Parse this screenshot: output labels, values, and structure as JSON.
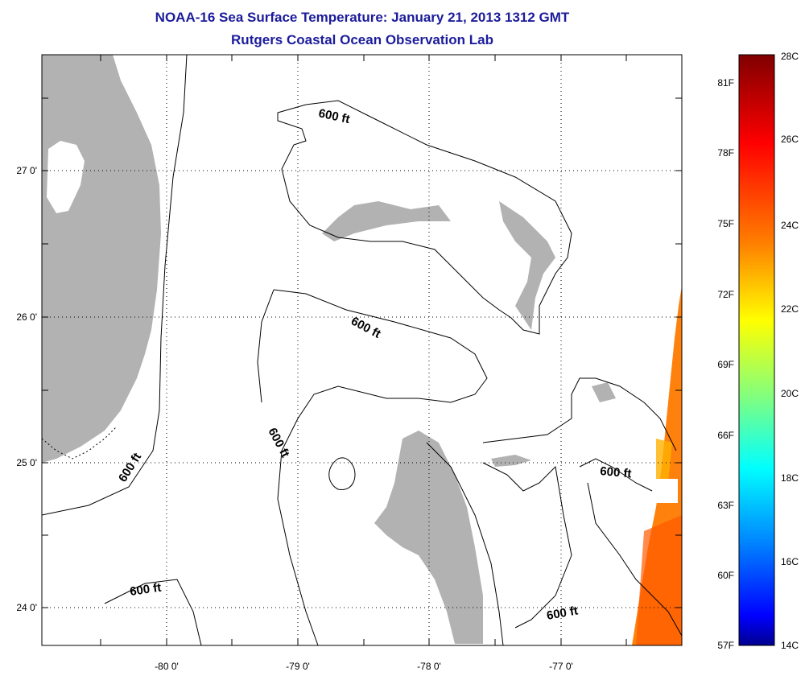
{
  "title": "NOAA-16 Sea Surface Temperature:  January 21, 2013 1312 GMT",
  "subtitle": "Rutgers Coastal Ocean Observation Lab",
  "map": {
    "longitude_ticks": [
      "-80 0'",
      "-79 0'",
      "-78 0'",
      "-77 0'"
    ],
    "latitude_ticks": [
      "27 0'",
      "26 0'",
      "25 0'",
      "24 0'"
    ],
    "contour_label": "600 ft",
    "land_color": "#b2b2b2",
    "sea_color": "#ffffff"
  },
  "colorbar": {
    "fahrenheit_labels": [
      "81F",
      "78F",
      "75F",
      "72F",
      "69F",
      "66F",
      "63F",
      "60F",
      "57F"
    ],
    "celsius_labels": [
      "28C",
      "26C",
      "24C",
      "22C",
      "20C",
      "18C",
      "16C",
      "14C"
    ],
    "min_label": "57F",
    "max_label": "28C",
    "colors": [
      "#800000",
      "#ff0000",
      "#ff8000",
      "#ffff00",
      "#80ff80",
      "#00ffff",
      "#0080ff",
      "#0000ff",
      "#00008f"
    ]
  }
}
